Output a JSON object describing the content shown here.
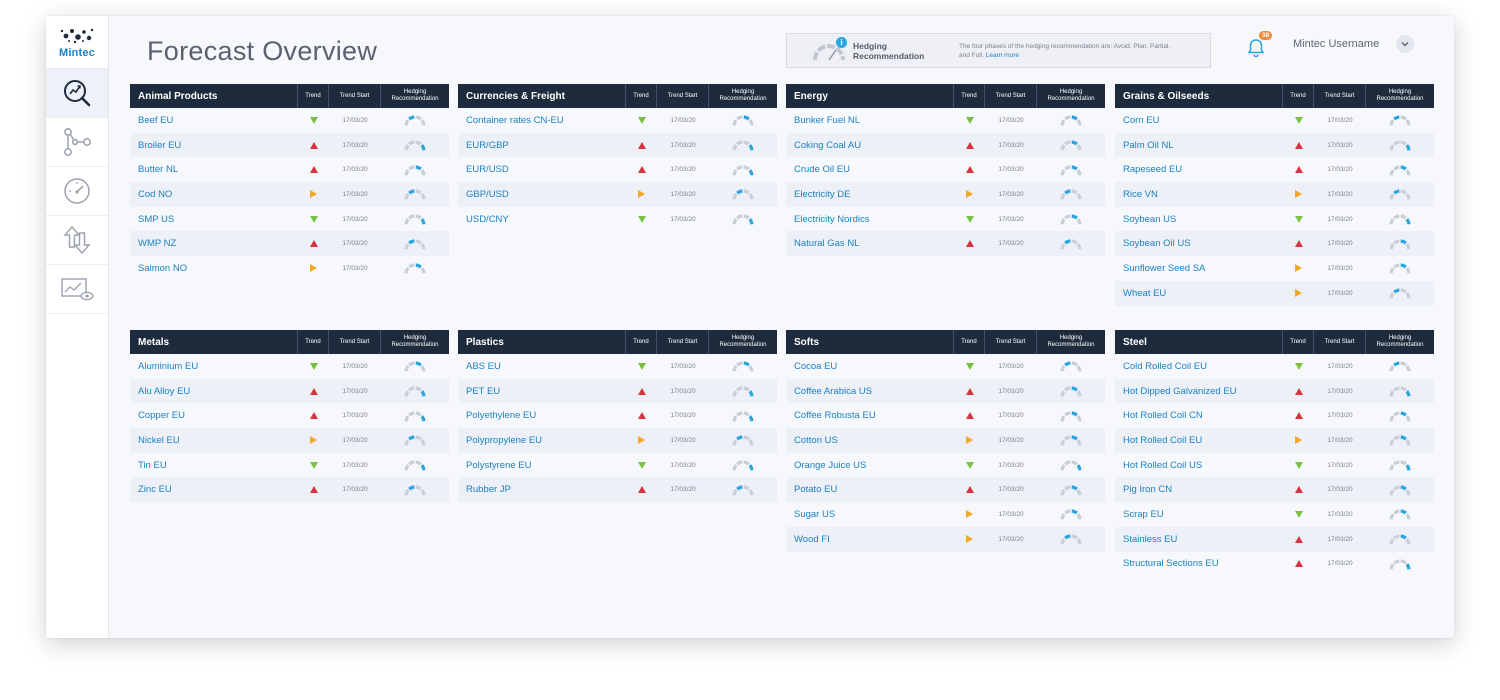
{
  "app": {
    "logo_text": "Mintec"
  },
  "page": {
    "title": "Forecast Overview"
  },
  "sidebar": {
    "items": [
      {
        "name": "forecast-search-icon",
        "active": true
      },
      {
        "name": "workflow-icon",
        "active": false
      },
      {
        "name": "gauge-icon",
        "active": false
      },
      {
        "name": "transfer-arrows-icon",
        "active": false
      },
      {
        "name": "chart-view-icon",
        "active": false
      }
    ]
  },
  "hedging_info": {
    "title": "Hedging Recommendation",
    "description": "The four phases of the hedging recommendation are: Avoid, Plan, Partial, and Full.",
    "link": "Learn more",
    "badge": "i"
  },
  "header": {
    "notifications": "38",
    "username": "Mintec Username"
  },
  "columns": {
    "trend": "Trend",
    "trend_start": "Trend Start",
    "hedging": "Hedging Recommendation"
  },
  "colors": {
    "up": "#d9333f",
    "down": "#7cc242",
    "flat": "#f5a623",
    "accent": "#2aa5e0",
    "header": "#1d2b3d",
    "link": "#1a82c4"
  },
  "panels": [
    {
      "title": "Animal Products",
      "rows": [
        {
          "name": "Beef EU",
          "trend": "down",
          "start": "17/03/20",
          "hedge": 2
        },
        {
          "name": "Broiler EU",
          "trend": "up",
          "start": "17/03/20",
          "hedge": 4
        },
        {
          "name": "Butter NL",
          "trend": "up",
          "start": "17/03/20",
          "hedge": 3
        },
        {
          "name": "Cod NO",
          "trend": "flat",
          "start": "17/03/20",
          "hedge": 2
        },
        {
          "name": "SMP US",
          "trend": "down",
          "start": "17/03/20",
          "hedge": 4
        },
        {
          "name": "WMP NZ",
          "trend": "up",
          "start": "17/03/20",
          "hedge": 2
        },
        {
          "name": "Salmon NO",
          "trend": "flat",
          "start": "17/03/20",
          "hedge": 3
        }
      ]
    },
    {
      "title": "Currencies & Freight",
      "rows": [
        {
          "name": "Container rates CN-EU",
          "trend": "down",
          "start": "17/03/20",
          "hedge": 3
        },
        {
          "name": "EUR/GBP",
          "trend": "up",
          "start": "17/03/20",
          "hedge": 4
        },
        {
          "name": "EUR/USD",
          "trend": "up",
          "start": "17/03/20",
          "hedge": 4
        },
        {
          "name": "GBP/USD",
          "trend": "flat",
          "start": "17/03/20",
          "hedge": 2
        },
        {
          "name": "USD/CNY",
          "trend": "down",
          "start": "17/03/20",
          "hedge": 4
        }
      ]
    },
    {
      "title": "Energy",
      "rows": [
        {
          "name": "Bunker Fuel NL",
          "trend": "down",
          "start": "17/03/20",
          "hedge": 3
        },
        {
          "name": "Coking Coal AU",
          "trend": "up",
          "start": "17/03/20",
          "hedge": 3
        },
        {
          "name": "Crude Oil EU",
          "trend": "up",
          "start": "17/03/20",
          "hedge": 3
        },
        {
          "name": "Electricity DE",
          "trend": "flat",
          "start": "17/03/20",
          "hedge": 2
        },
        {
          "name": "Electricity Nordics",
          "trend": "down",
          "start": "17/03/20",
          "hedge": 3
        },
        {
          "name": "Natural Gas NL",
          "trend": "up",
          "start": "17/03/20",
          "hedge": 2
        }
      ]
    },
    {
      "title": "Grains & Oilseeds",
      "rows": [
        {
          "name": "Corn EU",
          "trend": "down",
          "start": "17/03/20",
          "hedge": 2
        },
        {
          "name": "Palm Oil  NL",
          "trend": "up",
          "start": "17/03/20",
          "hedge": 4
        },
        {
          "name": "Rapeseed EU",
          "trend": "up",
          "start": "17/03/20",
          "hedge": 3
        },
        {
          "name": "Rice VN",
          "trend": "flat",
          "start": "17/03/20",
          "hedge": 2
        },
        {
          "name": "Soybean US",
          "trend": "down",
          "start": "17/03/20",
          "hedge": 4
        },
        {
          "name": "Soybean Oil  US",
          "trend": "up",
          "start": "17/03/20",
          "hedge": 3
        },
        {
          "name": "Sunflower Seed SA",
          "trend": "flat",
          "start": "17/03/20",
          "hedge": 3
        },
        {
          "name": "Wheat EU",
          "trend": "flat",
          "start": "17/03/20",
          "hedge": 2
        }
      ]
    },
    {
      "title": "Metals",
      "rows": [
        {
          "name": "Aluminium EU",
          "trend": "down",
          "start": "17/03/20",
          "hedge": 3
        },
        {
          "name": "Alu Alloy EU",
          "trend": "up",
          "start": "17/03/20",
          "hedge": 4
        },
        {
          "name": "Copper EU",
          "trend": "up",
          "start": "17/03/20",
          "hedge": 4
        },
        {
          "name": "Nickel EU",
          "trend": "flat",
          "start": "17/03/20",
          "hedge": 2
        },
        {
          "name": "Tin EU",
          "trend": "down",
          "start": "17/03/20",
          "hedge": 4
        },
        {
          "name": "Zinc EU",
          "trend": "up",
          "start": "17/03/20",
          "hedge": 2
        }
      ]
    },
    {
      "title": "Plastics",
      "rows": [
        {
          "name": "ABS EU",
          "trend": "down",
          "start": "17/03/20",
          "hedge": 3
        },
        {
          "name": "PET EU",
          "trend": "up",
          "start": "17/03/20",
          "hedge": 4
        },
        {
          "name": "Polyethylene EU",
          "trend": "up",
          "start": "17/03/20",
          "hedge": 4
        },
        {
          "name": "Polypropylene EU",
          "trend": "flat",
          "start": "17/03/20",
          "hedge": 2
        },
        {
          "name": "Polystyrene EU",
          "trend": "down",
          "start": "17/03/20",
          "hedge": 4
        },
        {
          "name": "Rubber JP",
          "trend": "up",
          "start": "17/03/20",
          "hedge": 2
        }
      ]
    },
    {
      "title": "Softs",
      "rows": [
        {
          "name": "Cocoa EU",
          "trend": "down",
          "start": "17/03/20",
          "hedge": 2
        },
        {
          "name": "Coffee Arabica US",
          "trend": "up",
          "start": "17/03/20",
          "hedge": 3
        },
        {
          "name": "Coffee Robusta EU",
          "trend": "up",
          "start": "17/03/20",
          "hedge": 3
        },
        {
          "name": "Cotton US",
          "trend": "flat",
          "start": "17/03/20",
          "hedge": 3
        },
        {
          "name": "Orange Juice US",
          "trend": "down",
          "start": "17/03/20",
          "hedge": 4
        },
        {
          "name": "Potato EU",
          "trend": "up",
          "start": "17/03/20",
          "hedge": 3
        },
        {
          "name": "Sugar US",
          "trend": "flat",
          "start": "17/03/20",
          "hedge": 3
        },
        {
          "name": "Wood FI",
          "trend": "flat",
          "start": "17/03/20",
          "hedge": 2
        }
      ]
    },
    {
      "title": "Steel",
      "rows": [
        {
          "name": "Cold Rolled Coil EU",
          "trend": "down",
          "start": "17/03/20",
          "hedge": 2
        },
        {
          "name": "Hot Dipped Galvanized EU",
          "trend": "up",
          "start": "17/03/20",
          "hedge": 4
        },
        {
          "name": "Hot Rolled Coil CN",
          "trend": "up",
          "start": "17/03/20",
          "hedge": 3
        },
        {
          "name": "Hot Rolled Coil EU",
          "trend": "flat",
          "start": "17/03/20",
          "hedge": 3
        },
        {
          "name": "Hot Rolled Coil US",
          "trend": "down",
          "start": "17/03/20",
          "hedge": 4
        },
        {
          "name": "Pig Iron CN",
          "trend": "up",
          "start": "17/03/20",
          "hedge": 3
        },
        {
          "name": "Scrap EU",
          "trend": "down",
          "start": "17/03/20",
          "hedge": 3
        },
        {
          "name": "Stainless EU",
          "trend": "up",
          "start": "17/03/20",
          "hedge": 3
        },
        {
          "name": "Structural Sections EU",
          "trend": "up",
          "start": "17/03/20",
          "hedge": 4
        }
      ]
    }
  ]
}
